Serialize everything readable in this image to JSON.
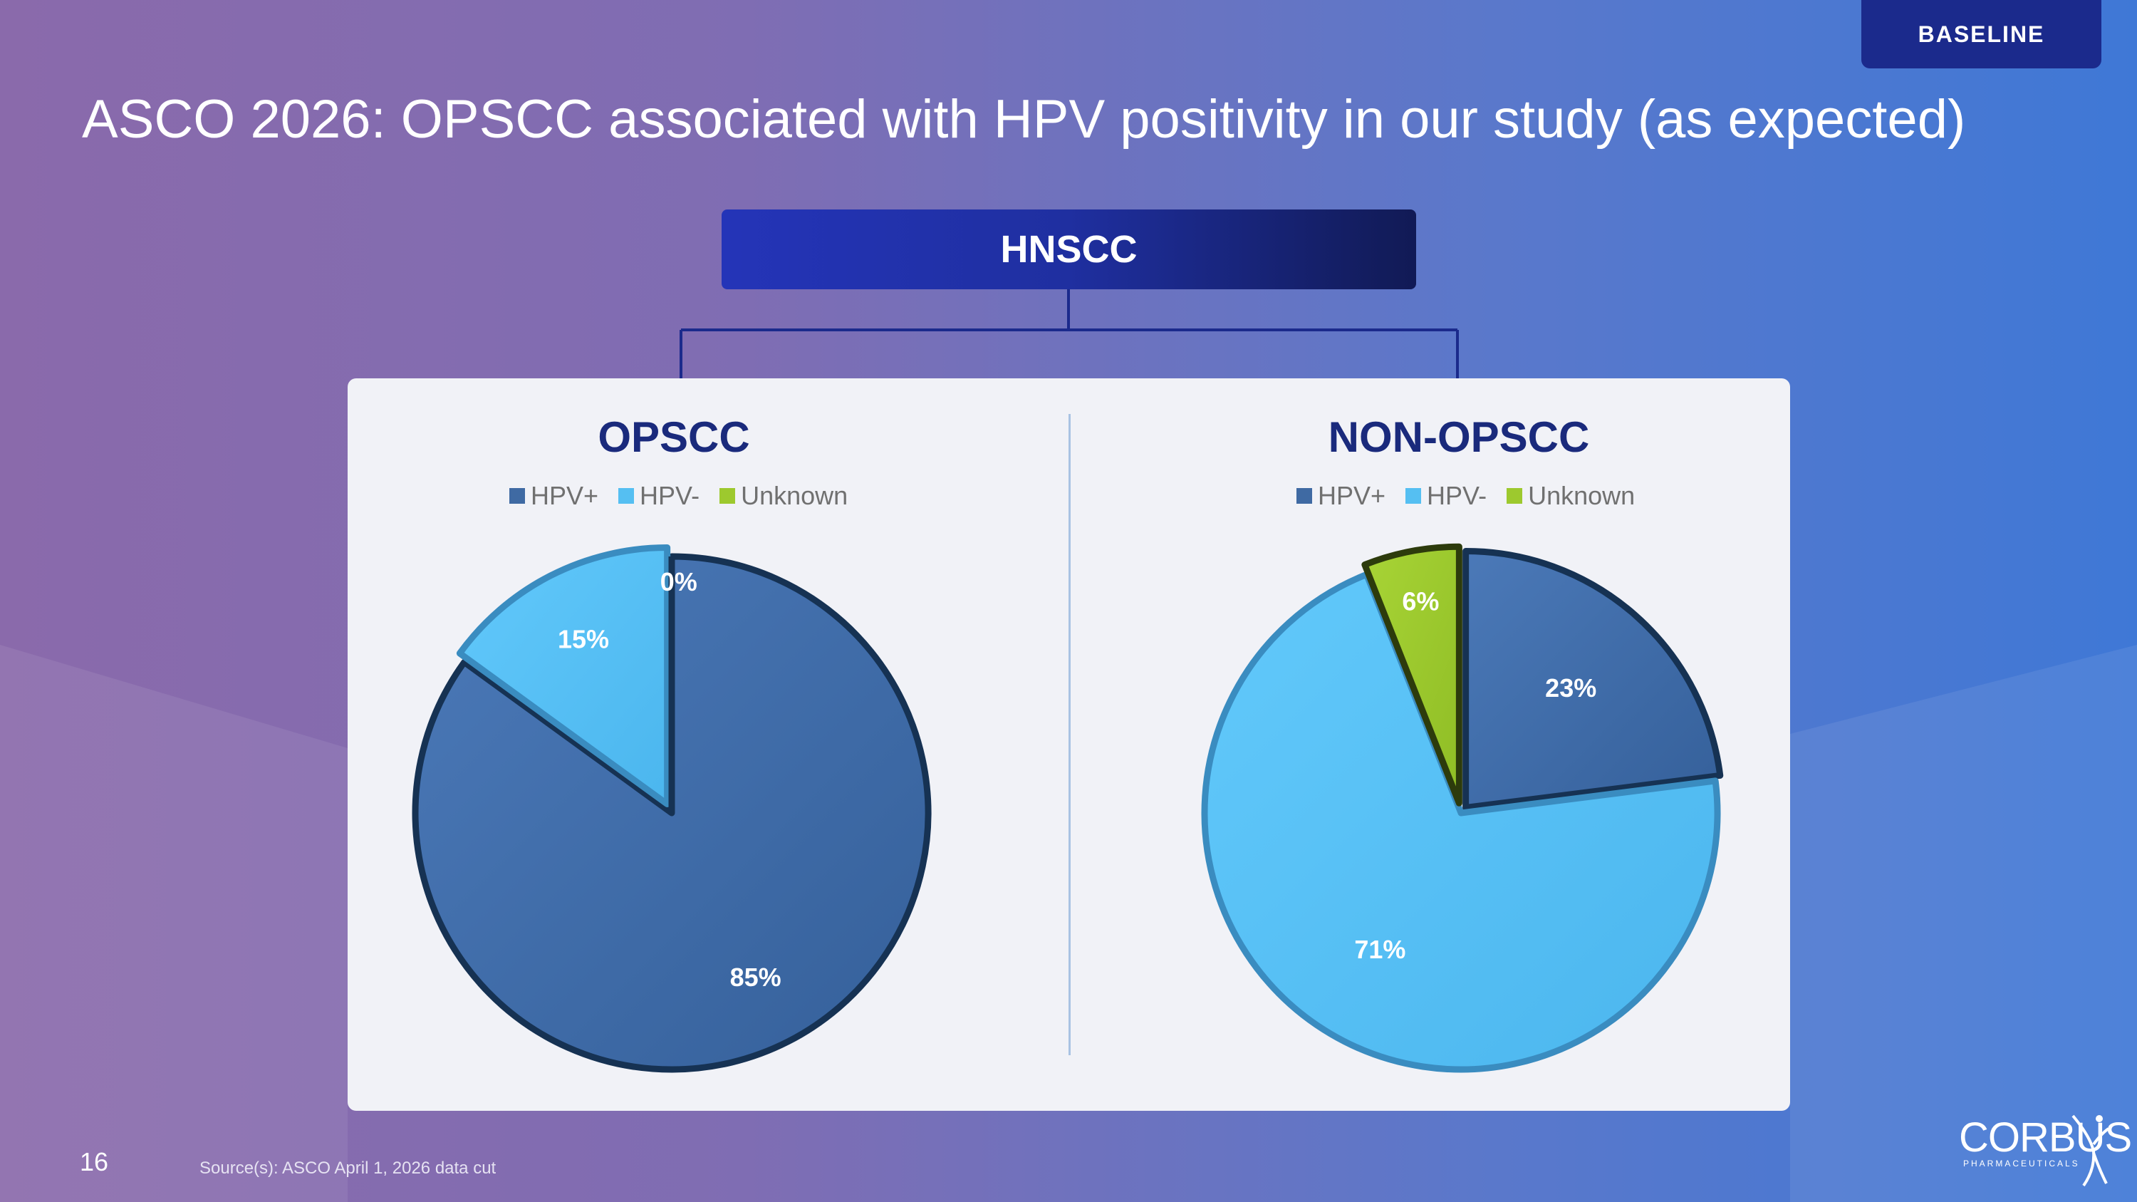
{
  "slide": {
    "badge": "BASELINE",
    "title": "ASCO 2026: OPSCC associated with HPV positivity in our study (as expected)",
    "root_label": "HNSCC",
    "page_number": "16",
    "source": "Source(s): ASCO April 1, 2026 data cut",
    "logo": {
      "name": "CORBUS",
      "sub": "PHARMACEUTICALS"
    }
  },
  "colors": {
    "hpv_pos": "#3f6aa3",
    "hpv_neg": "#55bff2",
    "unknown": "#9dc92e",
    "title_navy": "#1a2a7c"
  },
  "chart_data": [
    {
      "type": "pie",
      "title": "OPSCC",
      "legend": [
        "HPV+",
        "HPV-",
        "Unknown"
      ],
      "legend_position": "top",
      "slices": [
        {
          "label": "HPV+",
          "value": 85,
          "text": "85%"
        },
        {
          "label": "HPV-",
          "value": 15,
          "text": "15%"
        },
        {
          "label": "Unknown",
          "value": 0,
          "text": "0%"
        }
      ]
    },
    {
      "type": "pie",
      "title": "NON-OPSCC",
      "legend": [
        "HPV+",
        "HPV-",
        "Unknown"
      ],
      "legend_position": "top",
      "slices": [
        {
          "label": "HPV+",
          "value": 23,
          "text": "23%"
        },
        {
          "label": "HPV-",
          "value": 71,
          "text": "71%"
        },
        {
          "label": "Unknown",
          "value": 6,
          "text": "6%"
        }
      ]
    }
  ]
}
